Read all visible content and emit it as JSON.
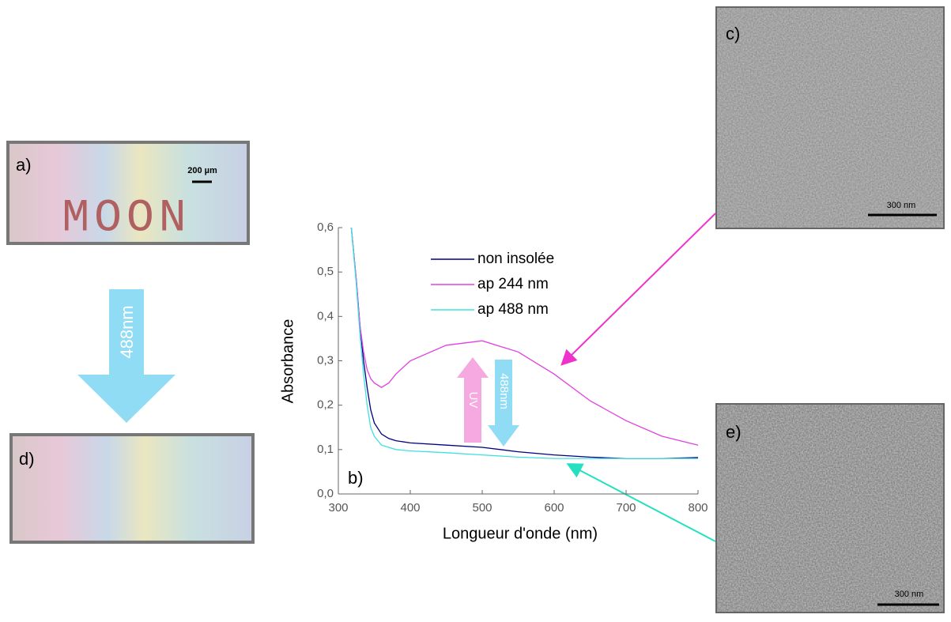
{
  "chart_data": {
    "type": "line",
    "x_label": "Longueur d'onde (nm)",
    "y_label": "Absorbance",
    "annotation": "b)",
    "x": [
      318,
      325,
      330,
      335,
      340,
      345,
      350,
      360,
      370,
      380,
      400,
      450,
      500,
      550,
      600,
      650,
      700,
      750,
      800
    ],
    "series": [
      {
        "name": "non insolée",
        "color": "#000080",
        "values": [
          0.6,
          0.48,
          0.38,
          0.3,
          0.24,
          0.19,
          0.16,
          0.135,
          0.125,
          0.12,
          0.115,
          0.11,
          0.105,
          0.095,
          0.088,
          0.083,
          0.08,
          0.08,
          0.082
        ]
      },
      {
        "name": "ap 244 nm",
        "color": "#e040e0",
        "values": [
          0.6,
          0.48,
          0.38,
          0.32,
          0.28,
          0.26,
          0.25,
          0.24,
          0.25,
          0.27,
          0.3,
          0.335,
          0.345,
          0.32,
          0.27,
          0.21,
          0.165,
          0.13,
          0.11
        ]
      },
      {
        "name": "ap 488 nm",
        "color": "#40e0e0",
        "values": [
          0.6,
          0.47,
          0.36,
          0.27,
          0.2,
          0.15,
          0.13,
          0.11,
          0.105,
          0.1,
          0.097,
          0.093,
          0.088,
          0.083,
          0.08,
          0.08,
          0.08,
          0.08,
          0.08
        ]
      }
    ],
    "xlim": [
      300,
      800
    ],
    "xticks": [
      300,
      400,
      500,
      600,
      700,
      800
    ],
    "ylim": [
      0,
      0.6
    ],
    "yticks": [
      {
        "value": 0,
        "label": "0,0"
      },
      {
        "value": 0.1,
        "label": "0,1"
      },
      {
        "value": 0.2,
        "label": "0,2"
      },
      {
        "value": 0.3,
        "label": "0,3"
      },
      {
        "value": 0.4,
        "label": "0,4"
      },
      {
        "value": 0.5,
        "label": "0,5"
      },
      {
        "value": 0.6,
        "label": "0,6"
      }
    ],
    "arrows": {
      "up": "UV",
      "down": "488nm"
    }
  },
  "figure": {
    "panel_a": {
      "label": "a)",
      "scale": "200 µm",
      "image_text": "MOON"
    },
    "transition": "488nm",
    "panel_c": {
      "label": "c)",
      "scale": "300 nm"
    },
    "panel_d": {
      "label": "d)"
    },
    "panel_e": {
      "label": "e)",
      "scale": "300 nm"
    }
  }
}
